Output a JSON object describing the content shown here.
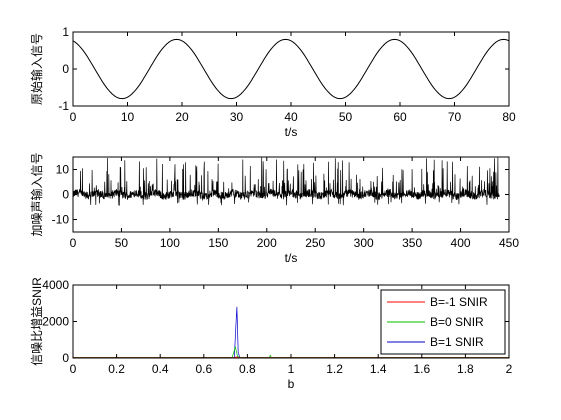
{
  "chart_data": [
    {
      "type": "line",
      "xlabel": "t/s",
      "ylabel": "原始输入信号",
      "xlim": [
        0,
        80
      ],
      "ylim": [
        -1,
        1
      ],
      "xticks": [
        "0",
        "10",
        "20",
        "30",
        "40",
        "50",
        "60",
        "70",
        "80"
      ],
      "yticks": [
        "-1",
        "0",
        "1"
      ],
      "grid": false,
      "series": [
        {
          "function": "0.8*cos(2*pi*(t+1)/20)",
          "x_step": 0.2,
          "color": "#000000"
        }
      ]
    },
    {
      "type": "line",
      "xlabel": "t/s",
      "ylabel": "加噪声输入信号",
      "xlim": [
        0,
        450
      ],
      "ylim": [
        -15,
        15
      ],
      "data_x_range": [
        0,
        440
      ],
      "xticks": [
        "0",
        "50",
        "100",
        "150",
        "200",
        "250",
        "300",
        "350",
        "400",
        "450"
      ],
      "yticks": [
        "-10",
        "0",
        "10"
      ],
      "grid": false,
      "series": [
        {
          "description": "noisy periodic signal, mostly within -3..3 with frequent spikes up to 15",
          "color": "#000000"
        }
      ]
    },
    {
      "type": "line",
      "xlabel": "b",
      "ylabel": "信噪比增益SNIR",
      "xlim": [
        0,
        2
      ],
      "ylim": [
        0,
        4000
      ],
      "xticks": [
        "0",
        "0.2",
        "0.4",
        "0.6",
        "0.8",
        "1",
        "1.2",
        "1.4",
        "1.6",
        "1.8",
        "2"
      ],
      "yticks": [
        "0",
        "2000",
        "4000"
      ],
      "grid": false,
      "legend": "upper-right",
      "series": [
        {
          "name": "B=-1 SNIR",
          "color": "#ff0000",
          "x": [
            0,
            0.74,
            0.75,
            0.76,
            0.77,
            2
          ],
          "y": [
            20,
            20,
            60,
            20,
            20,
            20
          ]
        },
        {
          "name": "B=0 SNIR",
          "color": "#00c000",
          "x": [
            0,
            0.73,
            0.745,
            0.755,
            0.765,
            0.9,
            0.905,
            0.91,
            2
          ],
          "y": [
            30,
            30,
            600,
            80,
            30,
            30,
            150,
            30,
            30
          ]
        },
        {
          "name": "B=1 SNIR",
          "color": "#0000cc",
          "x": [
            0,
            0.74,
            0.748,
            0.752,
            0.758,
            0.765,
            2
          ],
          "y": [
            20,
            20,
            2000,
            2800,
            300,
            20,
            20
          ]
        }
      ]
    }
  ]
}
